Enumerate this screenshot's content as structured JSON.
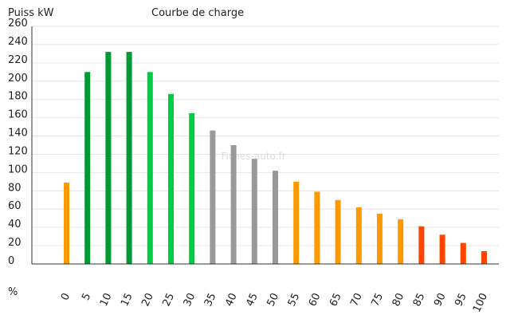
{
  "chart_data": {
    "type": "bar",
    "title": "Courbe de charge",
    "ylabel": "Puiss kW",
    "xlabel": "%",
    "watermark": "Fiches-auto.fr",
    "ylim": [
      0,
      260
    ],
    "yticks": [
      0,
      20,
      40,
      60,
      80,
      100,
      120,
      140,
      160,
      180,
      200,
      220,
      240,
      260
    ],
    "grid": true,
    "categories": [
      "0",
      "5",
      "10",
      "15",
      "20",
      "25",
      "30",
      "35",
      "40",
      "45",
      "50",
      "55",
      "60",
      "65",
      "70",
      "75",
      "80",
      "85",
      "90",
      "95",
      "100"
    ],
    "values": [
      89,
      210,
      232,
      232,
      210,
      186,
      165,
      146,
      130,
      115,
      102,
      90,
      79,
      70,
      62,
      55,
      49,
      41,
      32,
      23,
      14
    ],
    "colors": [
      "#ff9900",
      "#009933",
      "#009933",
      "#009933",
      "#00cc44",
      "#00cc44",
      "#00cc44",
      "#999999",
      "#999999",
      "#999999",
      "#999999",
      "#ff9900",
      "#ff9900",
      "#ff9900",
      "#ff9900",
      "#ff9900",
      "#ff9900",
      "#ff4400",
      "#ff4400",
      "#ff4400",
      "#ff4400"
    ]
  }
}
